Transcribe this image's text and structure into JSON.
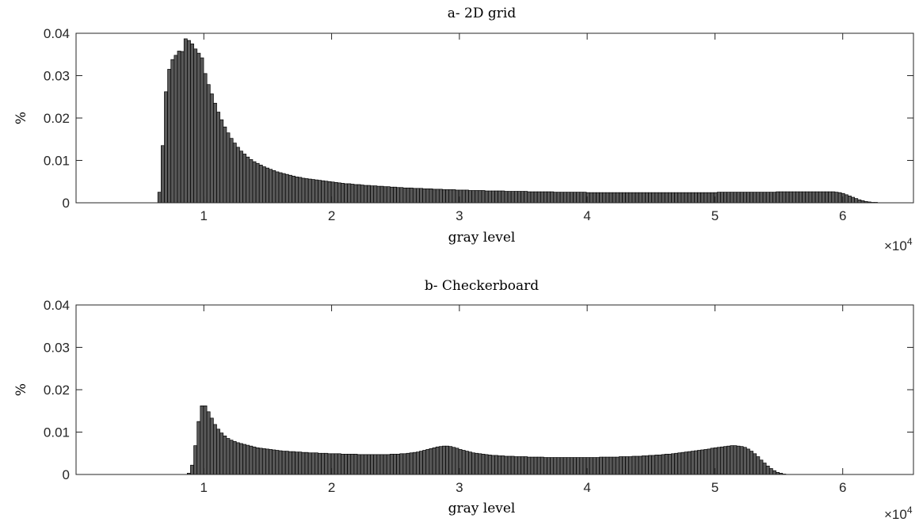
{
  "chart_data": [
    {
      "type": "bar",
      "title": "a- 2D grid",
      "xlabel": "gray level",
      "ylabel": "%",
      "x_multiplier": "×10",
      "x_multiplier_exp": "4",
      "xlim": [
        0,
        65536
      ],
      "ylim": [
        0,
        0.04
      ],
      "xticks": [
        10000,
        20000,
        30000,
        40000,
        50000,
        60000
      ],
      "xtick_labels": [
        "1",
        "2",
        "3",
        "4",
        "5",
        "6"
      ],
      "yticks": [
        0,
        0.01,
        0.02,
        0.03,
        0.04
      ],
      "ytick_labels": [
        "0",
        "0.01",
        "0.02",
        "0.03",
        "0.04"
      ],
      "bar_color": "#595959",
      "bin_width": 256,
      "bins_start": 6400,
      "values": [
        0.0025,
        0.0135,
        0.0262,
        0.0315,
        0.0338,
        0.0348,
        0.0358,
        0.0357,
        0.0387,
        0.0383,
        0.0375,
        0.0363,
        0.0353,
        0.0342,
        0.0305,
        0.0279,
        0.0257,
        0.0235,
        0.0214,
        0.0196,
        0.0179,
        0.0165,
        0.0152,
        0.0141,
        0.0131,
        0.0122,
        0.0115,
        0.0108,
        0.0102,
        0.0097,
        0.0093,
        0.0089,
        0.0085,
        0.0082,
        0.0079,
        0.0076,
        0.0073,
        0.0071,
        0.0069,
        0.0067,
        0.0065,
        0.0063,
        0.0061,
        0.006,
        0.0058,
        0.0057,
        0.0056,
        0.0055,
        0.0054,
        0.0053,
        0.0052,
        0.0051,
        0.005,
        0.0049,
        0.0048,
        0.0047,
        0.0046,
        0.0045,
        0.0045,
        0.0044,
        0.0043,
        0.0043,
        0.0042,
        0.0041,
        0.0041,
        0.004,
        0.004,
        0.0039,
        0.0039,
        0.0038,
        0.0038,
        0.0037,
        0.0037,
        0.0036,
        0.0036,
        0.0035,
        0.0035,
        0.0035,
        0.0034,
        0.0034,
        0.0034,
        0.0033,
        0.0033,
        0.0033,
        0.0032,
        0.0032,
        0.0032,
        0.0031,
        0.0031,
        0.0031,
        0.0031,
        0.003,
        0.003,
        0.003,
        0.003,
        0.0029,
        0.0029,
        0.0029,
        0.0029,
        0.0029,
        0.0028,
        0.0028,
        0.0028,
        0.0028,
        0.0028,
        0.0028,
        0.0027,
        0.0027,
        0.0027,
        0.0027,
        0.0027,
        0.0027,
        0.0027,
        0.0026,
        0.0026,
        0.0026,
        0.0026,
        0.0026,
        0.0026,
        0.0026,
        0.0026,
        0.0025,
        0.0025,
        0.0025,
        0.0025,
        0.0025,
        0.0025,
        0.0025,
        0.0025,
        0.0025,
        0.0025,
        0.0024,
        0.0024,
        0.0024,
        0.0024,
        0.0024,
        0.0024,
        0.0024,
        0.0024,
        0.0024,
        0.0024,
        0.0024,
        0.0024,
        0.0024,
        0.0024,
        0.0024,
        0.0024,
        0.0024,
        0.0024,
        0.0024,
        0.0024,
        0.0024,
        0.0024,
        0.0024,
        0.0024,
        0.0024,
        0.0024,
        0.0024,
        0.0024,
        0.0024,
        0.0024,
        0.0024,
        0.0024,
        0.0024,
        0.0024,
        0.0024,
        0.0024,
        0.0024,
        0.0024,
        0.0024,
        0.0024,
        0.0025,
        0.0025,
        0.0025,
        0.0025,
        0.0025,
        0.0025,
        0.0025,
        0.0025,
        0.0025,
        0.0025,
        0.0025,
        0.0025,
        0.0025,
        0.0025,
        0.0025,
        0.0025,
        0.0025,
        0.0025,
        0.0026,
        0.0026,
        0.0026,
        0.0026,
        0.0026,
        0.0026,
        0.0026,
        0.0026,
        0.0026,
        0.0026,
        0.0026,
        0.0026,
        0.0026,
        0.0026,
        0.0026,
        0.0026,
        0.0026,
        0.0026,
        0.0025,
        0.0024,
        0.0022,
        0.0019,
        0.0016,
        0.0013,
        0.001,
        0.0007,
        0.0005,
        0.0003,
        0.0002,
        0.0001,
        0.0001
      ]
    },
    {
      "type": "bar",
      "title": "b- Checkerboard",
      "xlabel": "gray level",
      "ylabel": "%",
      "x_multiplier": "×10",
      "x_multiplier_exp": "4",
      "xlim": [
        0,
        65536
      ],
      "ylim": [
        0,
        0.04
      ],
      "xticks": [
        10000,
        20000,
        30000,
        40000,
        50000,
        60000
      ],
      "xtick_labels": [
        "1",
        "2",
        "3",
        "4",
        "5",
        "6"
      ],
      "yticks": [
        0,
        0.01,
        0.02,
        0.03,
        0.04
      ],
      "ytick_labels": [
        "0",
        "0.01",
        "0.02",
        "0.03",
        "0.04"
      ],
      "bar_color": "#595959",
      "bin_width": 256,
      "bins_start": 8700,
      "values": [
        0.0003,
        0.0022,
        0.0068,
        0.0125,
        0.0162,
        0.0162,
        0.0148,
        0.0133,
        0.0118,
        0.0107,
        0.0098,
        0.0091,
        0.0085,
        0.0081,
        0.0078,
        0.0075,
        0.0073,
        0.0071,
        0.0069,
        0.0067,
        0.0065,
        0.0063,
        0.0062,
        0.0061,
        0.006,
        0.0059,
        0.0058,
        0.0057,
        0.0056,
        0.0055,
        0.0055,
        0.0054,
        0.0054,
        0.0053,
        0.0053,
        0.0052,
        0.0052,
        0.0051,
        0.0051,
        0.0051,
        0.005,
        0.005,
        0.005,
        0.0049,
        0.0049,
        0.0049,
        0.0049,
        0.0048,
        0.0048,
        0.0048,
        0.0048,
        0.0048,
        0.0047,
        0.0047,
        0.0047,
        0.0047,
        0.0047,
        0.0047,
        0.0047,
        0.0047,
        0.0047,
        0.0047,
        0.0048,
        0.0048,
        0.0048,
        0.0049,
        0.0049,
        0.005,
        0.0051,
        0.0052,
        0.0053,
        0.0055,
        0.0057,
        0.0059,
        0.0061,
        0.0063,
        0.0065,
        0.0066,
        0.0067,
        0.0067,
        0.0066,
        0.0064,
        0.0062,
        0.0059,
        0.0057,
        0.0055,
        0.0053,
        0.0051,
        0.005,
        0.0049,
        0.0048,
        0.0047,
        0.0046,
        0.0045,
        0.0045,
        0.0044,
        0.0044,
        0.0043,
        0.0043,
        0.0043,
        0.0042,
        0.0042,
        0.0042,
        0.0042,
        0.0041,
        0.0041,
        0.0041,
        0.0041,
        0.0041,
        0.004,
        0.004,
        0.004,
        0.004,
        0.004,
        0.004,
        0.004,
        0.004,
        0.004,
        0.004,
        0.004,
        0.004,
        0.004,
        0.004,
        0.004,
        0.004,
        0.004,
        0.0041,
        0.0041,
        0.0041,
        0.0041,
        0.0041,
        0.0041,
        0.0042,
        0.0042,
        0.0042,
        0.0042,
        0.0043,
        0.0043,
        0.0043,
        0.0044,
        0.0044,
        0.0045,
        0.0045,
        0.0046,
        0.0046,
        0.0047,
        0.0048,
        0.0048,
        0.0049,
        0.005,
        0.0051,
        0.0052,
        0.0053,
        0.0054,
        0.0055,
        0.0056,
        0.0057,
        0.0058,
        0.0059,
        0.006,
        0.0062,
        0.0063,
        0.0064,
        0.0065,
        0.0066,
        0.0067,
        0.0068,
        0.0068,
        0.0067,
        0.0066,
        0.0064,
        0.006,
        0.0055,
        0.0049,
        0.0042,
        0.0034,
        0.0027,
        0.002,
        0.0014,
        0.0009,
        0.0005,
        0.0003,
        0.0001
      ]
    }
  ]
}
